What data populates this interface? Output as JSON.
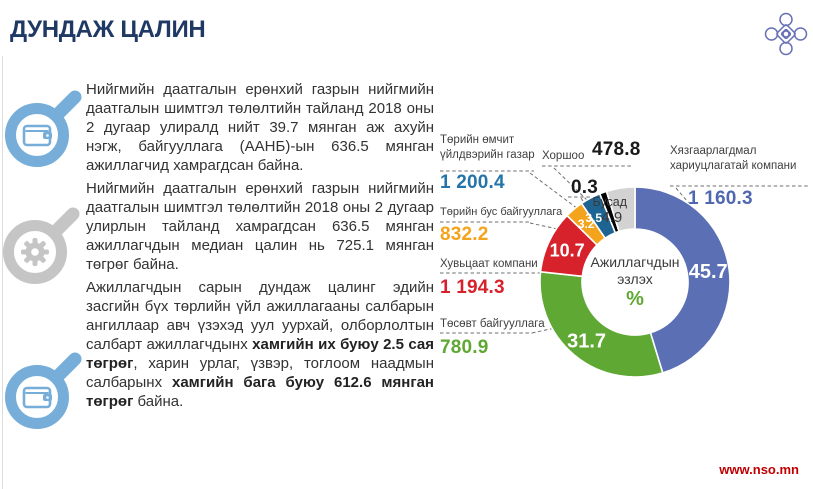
{
  "header": {
    "title": "ДУНДАЖ ЦАЛИН"
  },
  "logo": {
    "icon": "nso-ornament-logo",
    "color": "#6770b4"
  },
  "icons": [
    {
      "name": "magnifier-wallet-icon",
      "color": "#76aed9"
    },
    {
      "name": "magnifier-gear-icon",
      "color": "#c5c5c5"
    },
    {
      "name": "magnifier-wallet-icon",
      "color": "#76aed9"
    }
  ],
  "paragraphs": {
    "p1": "Нийгмийн даатгалын ерөнхий газрын нийгмийн даатгалын шимтгэл төлөлтийн тайланд 2018 оны 2 дугаар улиралд нийт 39.7 мянган аж ахуйн нэгж, байгууллага (ААНБ)-ын 636.5 мянган ажиллагчид хамрагдсан байна.",
    "p2": "Нийгмийн даатгалын ерөнхий газрын нийгмийн даатгалын шимтгэл төлөлтийн 2018 оны 2 дугаар улирлын тайланд хамрагдсан 636.5 мянган ажиллагчдын медиан цалин нь 725.1 мянган төгрөг байна.",
    "p3_segments": [
      {
        "text": "Ажиллагчдын сарын дундаж цалинг эдийн засгийн бүх төрлийн үйл ажиллагааны салбарын ангиллаар авч үзэхэд уул уурхай, олборлолтын салбарт ажиллагчдынх ",
        "bold": false
      },
      {
        "text": "хамгийн их буюу 2.5 сая төгрөг",
        "bold": true
      },
      {
        "text": ", харин урлаг, үзвэр, тоглоом наадмын салбарынх ",
        "bold": false
      },
      {
        "text": "хамгийн бага буюу 612.6 мянган төгрөг",
        "bold": true
      },
      {
        "text": " байна.",
        "bold": false
      }
    ]
  },
  "chart_data": {
    "type": "pie",
    "subtype": "donut",
    "center_label": {
      "line1": "Ажиллагчдын",
      "line2": "эзлэх",
      "unit": "%"
    },
    "unit_color": "#5fa834",
    "slices": [
      {
        "name": "Хязгаарлагдмал хариуцлагатай компани",
        "pct": 45.7,
        "value": "1 160.3",
        "color": "#5b6fb5",
        "value_color": "#4f68b0"
      },
      {
        "name": "Төсөвт байгууллага",
        "pct": 31.7,
        "value": "780.9",
        "color": "#5fa834",
        "value_color": "#5fa834"
      },
      {
        "name": "Хувьцаат компани",
        "pct": 10.7,
        "value": "1 194.3",
        "color": "#d7222c",
        "value_color": "#d7222c"
      },
      {
        "name": "Төрийн бус байгууллага",
        "pct": 3.2,
        "value": "832.2",
        "color": "#f4a41c",
        "value_color": "#f4a41c"
      },
      {
        "name": "Төрийн өмчит үйлдвэрийн газар",
        "pct": 3.5,
        "value": "1 200.4",
        "color": "#1e6493",
        "value_color": "#2574a9"
      },
      {
        "name": "Хоршоо",
        "pct": 0.3,
        "value": "478.8",
        "color": "#000000",
        "value_color": "#1a1a1a"
      },
      {
        "name": "Бусад",
        "pct": 4.9,
        "value": "",
        "color": "#d2d2d2",
        "value_color": "#3a3a3a"
      }
    ]
  },
  "footer": {
    "website": "www.nso.mn",
    "color": "#c00000"
  }
}
